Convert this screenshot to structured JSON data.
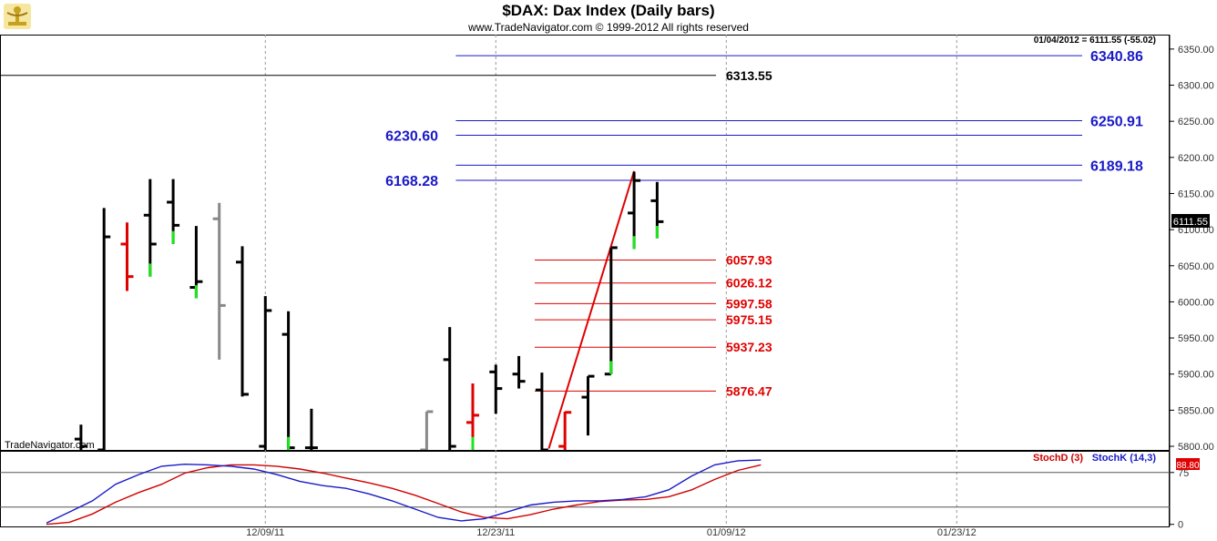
{
  "header": {
    "title": "$DAX:  Dax Index  (Daily bars)",
    "copyright": "www.TradeNavigator.com © 1999-2012 All rights reserved",
    "last_info": "01/04/2012 = 6111.55 (-55.02)",
    "brand": "TradeNavigator.com"
  },
  "colors": {
    "up": "#1ee61e",
    "down": "#e00000",
    "neutral": "#888888",
    "blue_level": "#1a1ac8",
    "red_level": "#e00000",
    "black_level": "#000000",
    "stoch_d": "#d00000",
    "stoch_k": "#1a1ac8"
  },
  "chart_data": [
    {
      "type": "ohlc",
      "title": "$DAX:  Dax Index  (Daily bars)",
      "ylim": [
        5795,
        6370
      ],
      "y_ticks": [
        "5800.00",
        "5850.00",
        "5900.00",
        "5950.00",
        "6000.00",
        "6050.00",
        "6100.00",
        "6150.00",
        "6200.00",
        "6250.00",
        "6300.00",
        "6350.00"
      ],
      "x_ticks": [
        {
          "label": "12/09/11",
          "index": 11
        },
        {
          "label": "12/23/11",
          "index": 21
        },
        {
          "label": "01/09/12",
          "index": 31
        },
        {
          "label": "01/23/12",
          "index": 41
        }
      ],
      "last_price_label": "6111.55",
      "bars": [
        {
          "i": 3,
          "o": 5810,
          "h": 5830,
          "l": 5795,
          "c": 5800,
          "color": "neutral_black"
        },
        {
          "i": 4,
          "o": 5795,
          "h": 6130,
          "l": 5795,
          "c": 6090,
          "color": "black"
        },
        {
          "i": 5,
          "o": 6080,
          "h": 6110,
          "l": 6015,
          "c": 6035,
          "color": "red"
        },
        {
          "i": 6,
          "o": 6120,
          "h": 6170,
          "l": 6035,
          "c": 6080,
          "color": "black",
          "tail": "up"
        },
        {
          "i": 7,
          "o": 6138,
          "h": 6170,
          "l": 6080,
          "c": 6106,
          "color": "black",
          "tail": "up"
        },
        {
          "i": 8,
          "o": 6020,
          "h": 6105,
          "l": 6005,
          "c": 6028,
          "color": "black",
          "tail": "up"
        },
        {
          "i": 9,
          "o": 6115,
          "h": 6137,
          "l": 5920,
          "c": 5995,
          "color": "gray"
        },
        {
          "i": 10,
          "o": 6055,
          "h": 6077,
          "l": 5869,
          "c": 5872,
          "color": "black"
        },
        {
          "i": 11,
          "o": 5800,
          "h": 6008,
          "l": 5795,
          "c": 5988,
          "color": "black"
        },
        {
          "i": 12,
          "o": 5955,
          "h": 5987,
          "l": 5795,
          "c": 5798,
          "color": "black",
          "tail": "up"
        },
        {
          "i": 13,
          "o": 5798,
          "h": 5852,
          "l": 5795,
          "c": 5798,
          "color": "black"
        },
        {
          "i": 18,
          "o": 5795,
          "h": 5848,
          "l": 5795,
          "c": 5848,
          "color": "gray"
        },
        {
          "i": 19,
          "o": 5920,
          "h": 5965,
          "l": 5795,
          "c": 5800,
          "color": "black"
        },
        {
          "i": 20,
          "o": 5833,
          "h": 5887,
          "l": 5795,
          "c": 5843,
          "color": "red",
          "tail": "up"
        },
        {
          "i": 21,
          "o": 5903,
          "h": 5913,
          "l": 5845,
          "c": 5880,
          "color": "black"
        },
        {
          "i": 22,
          "o": 5900,
          "h": 5925,
          "l": 5880,
          "c": 5890,
          "color": "black"
        },
        {
          "i": 23,
          "o": 5878,
          "h": 5902,
          "l": 5795,
          "c": 5795,
          "color": "black"
        },
        {
          "i": 24,
          "o": 5800,
          "h": 5848,
          "l": 5795,
          "c": 5847,
          "color": "red"
        },
        {
          "i": 25,
          "o": 5868,
          "h": 5897,
          "l": 5815,
          "c": 5897,
          "color": "black"
        },
        {
          "i": 26,
          "o": 5900,
          "h": 6075,
          "l": 5900,
          "c": 6075,
          "color": "black",
          "tail": "up"
        },
        {
          "i": 27,
          "o": 6123,
          "h": 6180,
          "l": 6073,
          "c": 6168,
          "color": "black",
          "tail": "up"
        },
        {
          "i": 28,
          "o": 6140,
          "h": 6166,
          "l": 6088,
          "c": 6111,
          "color": "black",
          "tail": "up"
        }
      ],
      "levels": [
        {
          "value": 6340.86,
          "label": "6340.86",
          "color": "blue",
          "side": "right",
          "from": 18
        },
        {
          "value": 6313.55,
          "label": "6313.55",
          "color": "black",
          "side": "mid",
          "from": -1
        },
        {
          "value": 6250.91,
          "label": "6250.91",
          "color": "blue",
          "side": "right",
          "from": 18
        },
        {
          "value": 6230.6,
          "label": "6230.60",
          "color": "blue",
          "side": "left",
          "from": 18
        },
        {
          "value": 6189.18,
          "label": "6189.18",
          "color": "blue",
          "side": "right",
          "from": 18
        },
        {
          "value": 6168.28,
          "label": "6168.28",
          "color": "blue",
          "side": "left",
          "from": 18
        },
        {
          "value": 6057.93,
          "label": "6057.93",
          "color": "red",
          "side": "mid",
          "from": 22.5
        },
        {
          "value": 6026.12,
          "label": "6026.12",
          "color": "red",
          "side": "mid",
          "from": 22.5
        },
        {
          "value": 5997.58,
          "label": "5997.58",
          "color": "red",
          "side": "mid",
          "from": 22.5
        },
        {
          "value": 5975.15,
          "label": "5975.15",
          "color": "red",
          "side": "mid",
          "from": 22.5
        },
        {
          "value": 5937.23,
          "label": "5937.23",
          "color": "red",
          "side": "mid",
          "from": 22.5
        },
        {
          "value": 5876.47,
          "label": "5876.47",
          "color": "red",
          "side": "mid",
          "from": 22.5
        }
      ],
      "trendline": {
        "from": {
          "i": 23.3,
          "v": 5797
        },
        "to": {
          "i": 27.0,
          "v": 6181
        }
      }
    },
    {
      "type": "line",
      "title": "",
      "ylim": [
        -3,
        105
      ],
      "y_ticks": [
        "0",
        "75"
      ],
      "reference_lines": [
        75,
        25
      ],
      "series": [
        {
          "name": "StochD (3)",
          "color": "red",
          "values": [
            0,
            3,
            15,
            32,
            46,
            58,
            74,
            82,
            86,
            86,
            84,
            80,
            74,
            67,
            60,
            52,
            42,
            30,
            18,
            10,
            8,
            14,
            22,
            28,
            33,
            35,
            36,
            40,
            50,
            65,
            78,
            86
          ]
        },
        {
          "name": "StochK (14,3)",
          "color": "blue",
          "values": [
            2,
            18,
            34,
            58,
            72,
            84,
            87,
            86,
            84,
            80,
            72,
            62,
            56,
            52,
            44,
            34,
            22,
            10,
            5,
            8,
            18,
            28,
            32,
            34,
            34,
            36,
            40,
            50,
            70,
            86,
            92,
            93
          ]
        }
      ],
      "last_values": [
        "88.80"
      ]
    }
  ]
}
